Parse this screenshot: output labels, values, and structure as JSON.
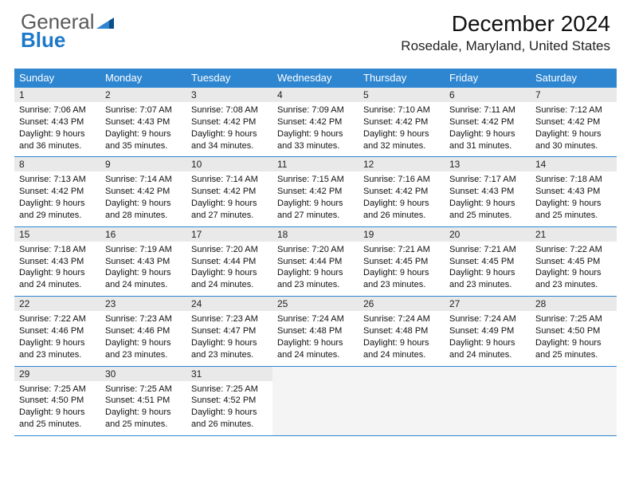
{
  "brand": {
    "name_top": "General",
    "name_bottom": "Blue"
  },
  "title": "December 2024",
  "location": "Rosedale, Maryland, United States",
  "colors": {
    "accent": "#2e86d1",
    "header_bg": "#2e86d1",
    "daynum_bg": "#e9e9e9",
    "empty_bg": "#f4f4f4",
    "text": "#111111"
  },
  "weekdays": [
    "Sunday",
    "Monday",
    "Tuesday",
    "Wednesday",
    "Thursday",
    "Friday",
    "Saturday"
  ],
  "weeks": [
    [
      {
        "n": "1",
        "sr": "7:06 AM",
        "ss": "4:43 PM",
        "dl": "9 hours and 36 minutes."
      },
      {
        "n": "2",
        "sr": "7:07 AM",
        "ss": "4:43 PM",
        "dl": "9 hours and 35 minutes."
      },
      {
        "n": "3",
        "sr": "7:08 AM",
        "ss": "4:42 PM",
        "dl": "9 hours and 34 minutes."
      },
      {
        "n": "4",
        "sr": "7:09 AM",
        "ss": "4:42 PM",
        "dl": "9 hours and 33 minutes."
      },
      {
        "n": "5",
        "sr": "7:10 AM",
        "ss": "4:42 PM",
        "dl": "9 hours and 32 minutes."
      },
      {
        "n": "6",
        "sr": "7:11 AM",
        "ss": "4:42 PM",
        "dl": "9 hours and 31 minutes."
      },
      {
        "n": "7",
        "sr": "7:12 AM",
        "ss": "4:42 PM",
        "dl": "9 hours and 30 minutes."
      }
    ],
    [
      {
        "n": "8",
        "sr": "7:13 AM",
        "ss": "4:42 PM",
        "dl": "9 hours and 29 minutes."
      },
      {
        "n": "9",
        "sr": "7:14 AM",
        "ss": "4:42 PM",
        "dl": "9 hours and 28 minutes."
      },
      {
        "n": "10",
        "sr": "7:14 AM",
        "ss": "4:42 PM",
        "dl": "9 hours and 27 minutes."
      },
      {
        "n": "11",
        "sr": "7:15 AM",
        "ss": "4:42 PM",
        "dl": "9 hours and 27 minutes."
      },
      {
        "n": "12",
        "sr": "7:16 AM",
        "ss": "4:42 PM",
        "dl": "9 hours and 26 minutes."
      },
      {
        "n": "13",
        "sr": "7:17 AM",
        "ss": "4:43 PM",
        "dl": "9 hours and 25 minutes."
      },
      {
        "n": "14",
        "sr": "7:18 AM",
        "ss": "4:43 PM",
        "dl": "9 hours and 25 minutes."
      }
    ],
    [
      {
        "n": "15",
        "sr": "7:18 AM",
        "ss": "4:43 PM",
        "dl": "9 hours and 24 minutes."
      },
      {
        "n": "16",
        "sr": "7:19 AM",
        "ss": "4:43 PM",
        "dl": "9 hours and 24 minutes."
      },
      {
        "n": "17",
        "sr": "7:20 AM",
        "ss": "4:44 PM",
        "dl": "9 hours and 24 minutes."
      },
      {
        "n": "18",
        "sr": "7:20 AM",
        "ss": "4:44 PM",
        "dl": "9 hours and 23 minutes."
      },
      {
        "n": "19",
        "sr": "7:21 AM",
        "ss": "4:45 PM",
        "dl": "9 hours and 23 minutes."
      },
      {
        "n": "20",
        "sr": "7:21 AM",
        "ss": "4:45 PM",
        "dl": "9 hours and 23 minutes."
      },
      {
        "n": "21",
        "sr": "7:22 AM",
        "ss": "4:45 PM",
        "dl": "9 hours and 23 minutes."
      }
    ],
    [
      {
        "n": "22",
        "sr": "7:22 AM",
        "ss": "4:46 PM",
        "dl": "9 hours and 23 minutes."
      },
      {
        "n": "23",
        "sr": "7:23 AM",
        "ss": "4:46 PM",
        "dl": "9 hours and 23 minutes."
      },
      {
        "n": "24",
        "sr": "7:23 AM",
        "ss": "4:47 PM",
        "dl": "9 hours and 23 minutes."
      },
      {
        "n": "25",
        "sr": "7:24 AM",
        "ss": "4:48 PM",
        "dl": "9 hours and 24 minutes."
      },
      {
        "n": "26",
        "sr": "7:24 AM",
        "ss": "4:48 PM",
        "dl": "9 hours and 24 minutes."
      },
      {
        "n": "27",
        "sr": "7:24 AM",
        "ss": "4:49 PM",
        "dl": "9 hours and 24 minutes."
      },
      {
        "n": "28",
        "sr": "7:25 AM",
        "ss": "4:50 PM",
        "dl": "9 hours and 25 minutes."
      }
    ],
    [
      {
        "n": "29",
        "sr": "7:25 AM",
        "ss": "4:50 PM",
        "dl": "9 hours and 25 minutes."
      },
      {
        "n": "30",
        "sr": "7:25 AM",
        "ss": "4:51 PM",
        "dl": "9 hours and 25 minutes."
      },
      {
        "n": "31",
        "sr": "7:25 AM",
        "ss": "4:52 PM",
        "dl": "9 hours and 26 minutes."
      },
      null,
      null,
      null,
      null
    ]
  ],
  "labels": {
    "sunrise": "Sunrise:",
    "sunset": "Sunset:",
    "daylight": "Daylight:"
  }
}
